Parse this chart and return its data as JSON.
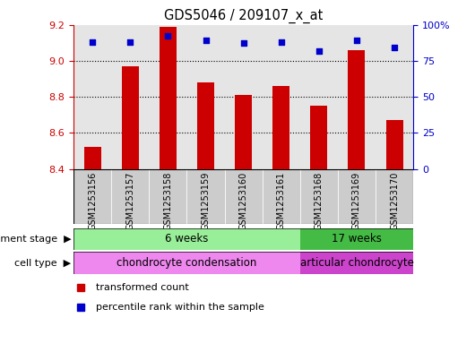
{
  "title": "GDS5046 / 209107_x_at",
  "samples": [
    "GSM1253156",
    "GSM1253157",
    "GSM1253158",
    "GSM1253159",
    "GSM1253160",
    "GSM1253161",
    "GSM1253168",
    "GSM1253169",
    "GSM1253170"
  ],
  "transformed_counts": [
    8.52,
    8.97,
    9.19,
    8.88,
    8.81,
    8.86,
    8.75,
    9.06,
    8.67
  ],
  "percentile_ranks": [
    88,
    88,
    92,
    89,
    87,
    88,
    82,
    89,
    84
  ],
  "ylim_left": [
    8.4,
    9.2
  ],
  "ylim_right": [
    0,
    100
  ],
  "yticks_left": [
    8.4,
    8.6,
    8.8,
    9.0,
    9.2
  ],
  "yticks_right": [
    0,
    25,
    50,
    75,
    100
  ],
  "bar_color": "#cc0000",
  "dot_color": "#0000cc",
  "bar_bottom": 8.4,
  "col_bg_color": "#cccccc",
  "groups": [
    {
      "label": "6 weeks",
      "start": 0,
      "end": 6,
      "color": "#99ee99"
    },
    {
      "label": "17 weeks",
      "start": 6,
      "end": 9,
      "color": "#44bb44"
    }
  ],
  "cell_types": [
    {
      "label": "chondrocyte condensation",
      "start": 0,
      "end": 6,
      "color": "#ee88ee"
    },
    {
      "label": "articular chondrocyte",
      "start": 6,
      "end": 9,
      "color": "#cc44cc"
    }
  ],
  "legend_items": [
    {
      "color": "#cc0000",
      "label": "transformed count"
    },
    {
      "color": "#0000cc",
      "label": "percentile rank within the sample"
    }
  ],
  "left_tick_color": "#cc0000",
  "right_tick_color": "#0000cc",
  "row_label_dev": "development stage",
  "row_label_cell": "cell type"
}
